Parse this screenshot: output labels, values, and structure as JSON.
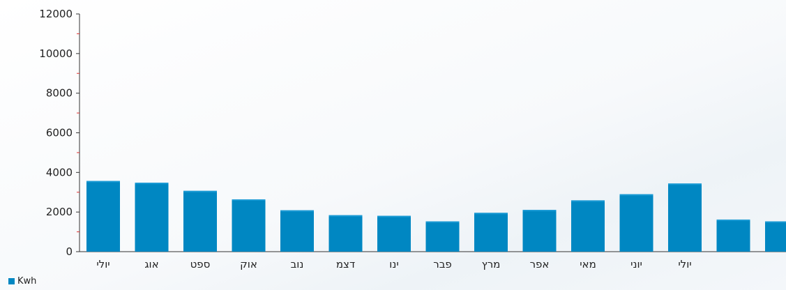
{
  "chart_data": {
    "type": "bar",
    "categories": [
      "יולי",
      "אוג",
      "ספט",
      "אוק",
      "נוב",
      "דצמ",
      "ינו",
      "פבר",
      "מרץ",
      "אפר",
      "מאי",
      "יוני",
      "יולי",
      "",
      ""
    ],
    "series": [
      {
        "name": "Kwh",
        "color": "#0087c2",
        "values": [
          3570,
          3480,
          3070,
          2640,
          2090,
          1840,
          1810,
          1530,
          1960,
          2110,
          2590,
          2900,
          3440,
          1620,
          1530
        ]
      }
    ],
    "ylim": [
      0,
      12000
    ],
    "yticks": [
      "0",
      "2000",
      "4000",
      "6000",
      "8000",
      "10000",
      "12000"
    ],
    "minor_tick_color": "#e03030",
    "grid": false,
    "legend_position": "bottom-left"
  },
  "legend": {
    "label": "Kwh"
  }
}
